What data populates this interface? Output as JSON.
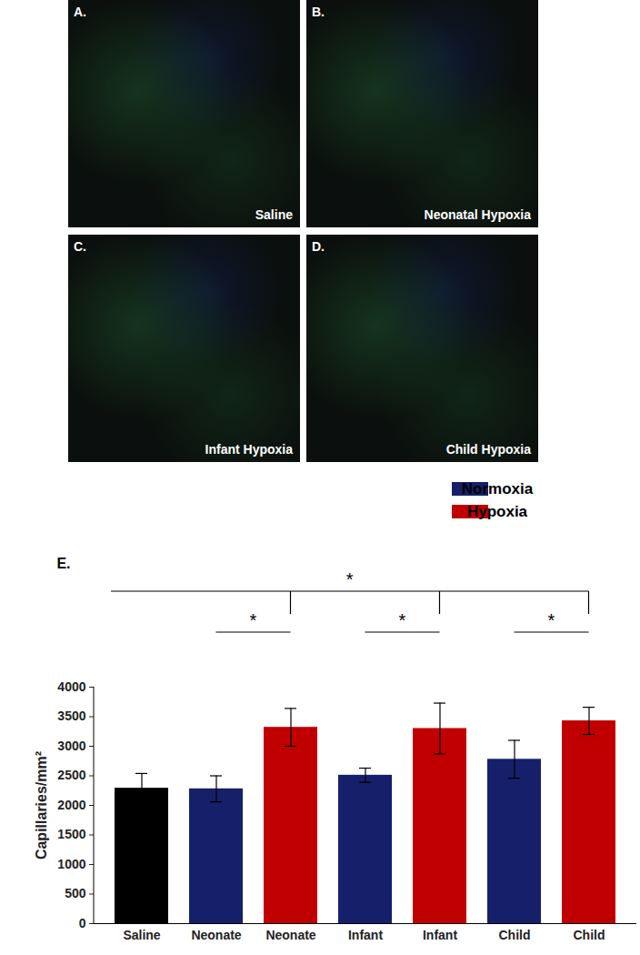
{
  "panels": [
    {
      "letter": "A.",
      "label": "Saline"
    },
    {
      "letter": "B.",
      "label": "Neonatal Hypoxia"
    },
    {
      "letter": "C.",
      "label": "Infant Hypoxia"
    },
    {
      "letter": "D.",
      "label": "Child Hypoxia"
    }
  ],
  "chart_data": {
    "type": "bar",
    "title": "E.",
    "y_label": "Capillaries/mm²",
    "categories": [
      "Saline",
      "Neonate",
      "Neonate",
      "Infant",
      "Infant",
      "Child",
      "Child"
    ],
    "series": [
      {
        "name": null,
        "color": "#000000",
        "values": [
          2290,
          null,
          null,
          null,
          null,
          null,
          null
        ],
        "errors": [
          250,
          null,
          null,
          null,
          null,
          null,
          null
        ]
      },
      {
        "name": "Normoxia",
        "color": "#16206a",
        "values": [
          null,
          2280,
          null,
          2510,
          null,
          2780,
          null
        ],
        "errors": [
          null,
          220,
          null,
          120,
          null,
          320,
          null
        ]
      },
      {
        "name": "Hypoxia",
        "color": "#c00000",
        "values": [
          null,
          null,
          3320,
          null,
          3300,
          null,
          3430
        ],
        "errors": [
          null,
          null,
          320,
          null,
          430,
          null,
          230
        ]
      }
    ],
    "ylim": [
      0,
      4000
    ],
    "yticks": [
      0,
      500,
      1000,
      1500,
      2000,
      2500,
      3000,
      3500,
      4000
    ],
    "legend": "top-right",
    "grid": false,
    "annotations": [
      {
        "text": "*",
        "from": 1,
        "to": 2
      },
      {
        "text": "*",
        "from": 3,
        "to": 4
      },
      {
        "text": "*",
        "from": 5,
        "to": 6
      },
      {
        "text": "*",
        "from": 0,
        "to": 6,
        "drops": [
          2,
          4,
          6
        ]
      }
    ]
  }
}
